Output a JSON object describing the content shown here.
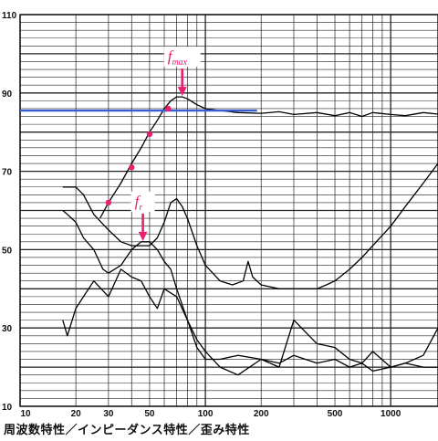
{
  "caption": "周波数特性／インピーダンス特性／歪み特性",
  "chart_data": {
    "type": "line",
    "xscale": "log",
    "xlim": [
      10,
      1800
    ],
    "ylim": [
      10,
      110
    ],
    "x_ticks": [
      10,
      20,
      30,
      50,
      100,
      200,
      500,
      1000
    ],
    "x_tick_labels": [
      "10",
      "20",
      "30",
      "50",
      "100",
      "200",
      "500",
      "1000"
    ],
    "y_ticks": [
      10,
      30,
      50,
      70,
      90,
      110
    ],
    "y_tick_labels": [
      "10",
      "30",
      "50",
      "70",
      "90",
      "110"
    ],
    "grid": true,
    "series": [
      {
        "role": "frequency-response",
        "color": "#000000",
        "x": [
          27,
          30,
          35,
          40,
          45,
          50,
          55,
          60,
          65,
          70,
          75,
          80,
          90,
          100,
          120,
          150,
          200,
          250,
          300,
          400,
          500,
          600,
          700,
          800,
          1000,
          1200,
          1500,
          1800
        ],
        "y": [
          58,
          62,
          67,
          72,
          76,
          80,
          83,
          86,
          88,
          89,
          89,
          88.5,
          87,
          86,
          85.5,
          85,
          84.8,
          85.2,
          84.5,
          85,
          84.2,
          85,
          84,
          85,
          84.5,
          84.2,
          85,
          84.6
        ]
      },
      {
        "role": "impedance",
        "color": "#000000",
        "x": [
          17,
          20,
          22,
          25,
          30,
          35,
          40,
          45,
          50,
          55,
          60,
          65,
          70,
          75,
          80,
          90,
          100,
          120,
          140,
          160,
          170,
          180,
          200,
          250,
          300,
          350,
          400,
          450,
          500,
          600,
          700,
          800,
          1000,
          1200,
          1500,
          1800
        ],
        "y": [
          66,
          66,
          64,
          59,
          55,
          52,
          51,
          51,
          51,
          53,
          57,
          62,
          63,
          61,
          58,
          51,
          46,
          42,
          41,
          42,
          47,
          43,
          41,
          40,
          40,
          40,
          40,
          41,
          42,
          45,
          48,
          51,
          56,
          61,
          67,
          72
        ]
      },
      {
        "role": "distortion",
        "color": "#000000",
        "x": [
          17,
          18,
          20,
          22,
          25,
          28,
          30,
          35,
          40,
          45,
          50,
          55,
          60,
          65,
          70,
          80,
          90,
          100,
          120,
          150,
          200,
          250,
          300,
          400,
          500,
          600,
          700,
          800,
          1000,
          1200,
          1500,
          1800
        ],
        "y": [
          60,
          59,
          57,
          53,
          50,
          45,
          44,
          46,
          50,
          52,
          52,
          50,
          47,
          45,
          40,
          32,
          25,
          22,
          22,
          23,
          22,
          21,
          23,
          21,
          22,
          20,
          21,
          19,
          20,
          21,
          20,
          20
        ]
      },
      {
        "role": "distortion-harmonic",
        "color": "#000000",
        "x": [
          17,
          18,
          20,
          22,
          25,
          30,
          35,
          40,
          45,
          50,
          55,
          60,
          70,
          80,
          90,
          100,
          120,
          150,
          200,
          250,
          300,
          400,
          500,
          600,
          700,
          800,
          1000,
          1200,
          1500,
          1800
        ],
        "y": [
          32,
          28,
          35,
          38,
          42,
          38,
          45,
          43,
          42,
          38,
          35,
          40,
          38,
          32,
          27,
          24,
          20,
          18,
          22,
          20,
          32,
          26,
          25,
          22,
          21,
          24,
          20,
          21,
          23,
          30
        ]
      },
      {
        "role": "reference-level",
        "color": "#3a5bd9",
        "x": [
          10,
          190
        ],
        "y": [
          85.5,
          85.5
        ]
      }
    ],
    "markers": {
      "color": "#e8206e",
      "x": [
        30,
        40,
        50,
        63
      ],
      "y": [
        62,
        71,
        79.5,
        86
      ]
    },
    "annotations": [
      {
        "label_main": "f",
        "label_sub": "max",
        "x": 75,
        "y": 89,
        "color": "#e8206e"
      },
      {
        "label_main": "f",
        "label_sub": "r",
        "x": 46,
        "y": 52,
        "color": "#e8206e"
      }
    ]
  }
}
